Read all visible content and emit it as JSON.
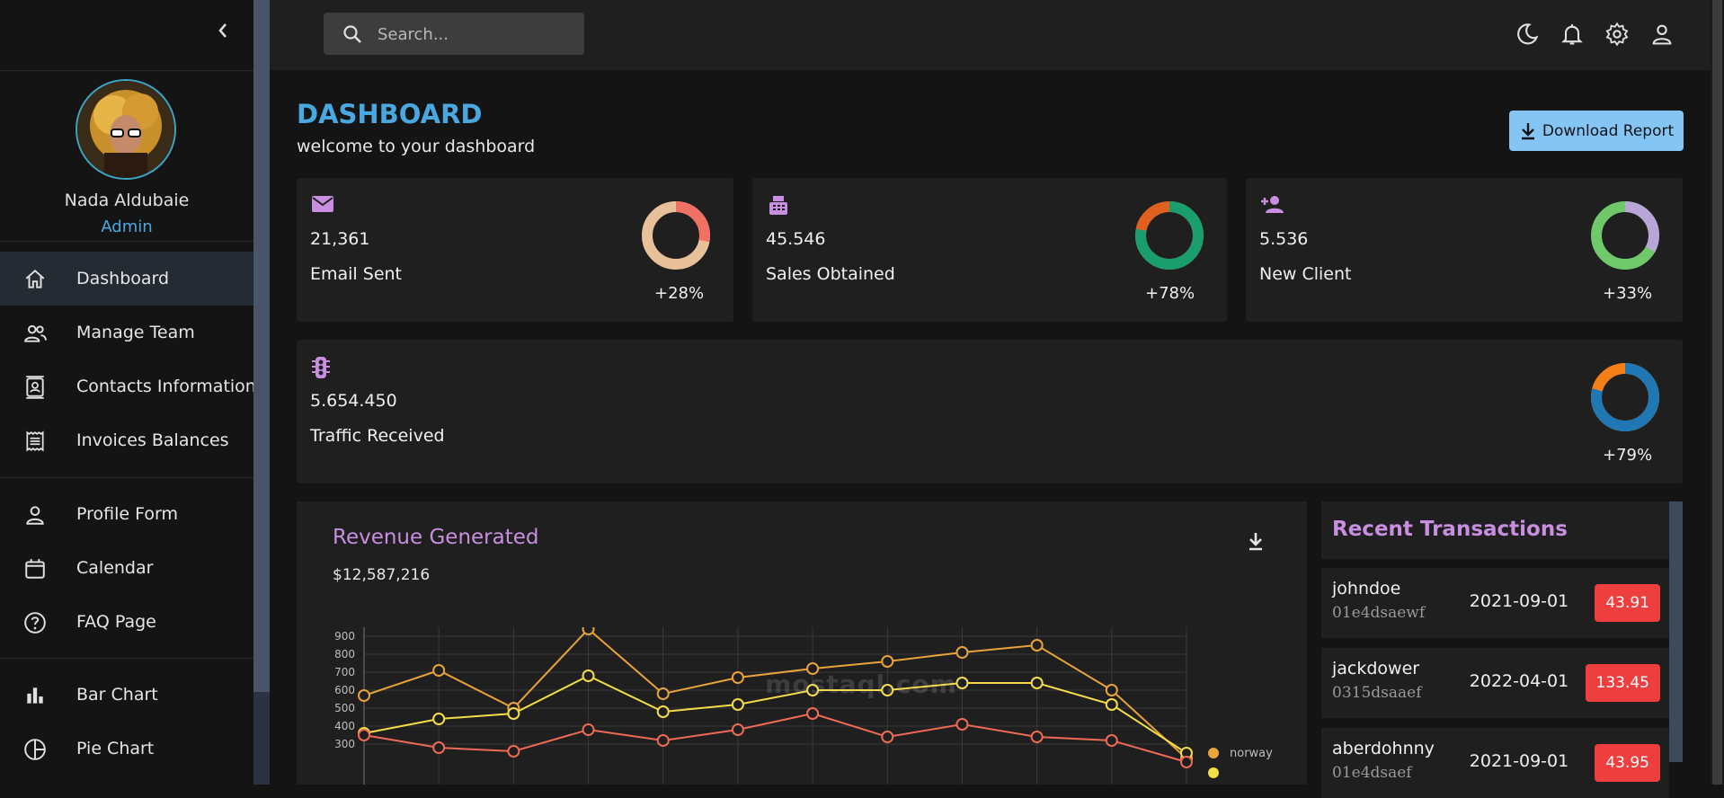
{
  "sidebar": {
    "user": {
      "name": "Nada Aldubaie",
      "role": "Admin"
    },
    "items": [
      {
        "label": "Dashboard",
        "icon": "home-icon",
        "active": true
      },
      {
        "label": "Manage Team",
        "icon": "team-icon"
      },
      {
        "label": "Contacts Information",
        "icon": "contacts-icon"
      },
      {
        "label": "Invoices Balances",
        "icon": "invoice-icon"
      },
      {
        "label": "Profile Form",
        "icon": "person-icon"
      },
      {
        "label": "Calendar",
        "icon": "calendar-icon"
      },
      {
        "label": "FAQ Page",
        "icon": "help-icon"
      },
      {
        "label": "Bar Chart",
        "icon": "bar-chart-icon"
      },
      {
        "label": "Pie Chart",
        "icon": "pie-chart-icon"
      }
    ]
  },
  "topbar": {
    "search_placeholder": "Search...",
    "icons": [
      "dark-mode-icon",
      "notifications-icon",
      "settings-icon",
      "profile-icon"
    ]
  },
  "header": {
    "title": "DASHBOARD",
    "subtitle": "welcome to your dashboard",
    "download_label": "Download Report"
  },
  "stats": [
    {
      "value": "21,361",
      "label": "Email Sent",
      "pct": "+28%",
      "progress": 0.28,
      "icon": "email-icon"
    },
    {
      "value": "45.546",
      "label": "Sales Obtained",
      "pct": "+78%",
      "progress": 0.78,
      "icon": "pos-icon"
    },
    {
      "value": "5.536",
      "label": "New Client",
      "pct": "+33%",
      "progress": 0.33,
      "icon": "person-add-icon"
    },
    {
      "value": "5.654.450",
      "label": "Traffic Received",
      "pct": "+79%",
      "progress": 0.79,
      "icon": "traffic-icon"
    }
  ],
  "revenue": {
    "title": "Revenue Generated",
    "amount": "$12,587,216"
  },
  "transactions": {
    "title": "Recent Transactions",
    "rows": [
      {
        "user": "johndoe",
        "txId": "01e4dsaewf",
        "date": "2021-09-01",
        "cost": "43.91"
      },
      {
        "user": "jackdower",
        "txId": "0315dsaaef",
        "date": "2022-04-01",
        "cost": "133.45"
      },
      {
        "user": "aberdohnny",
        "txId": "01e4dsaef",
        "date": "2021-09-01",
        "cost": "43.95"
      }
    ]
  },
  "watermark": "mostaql.com",
  "colors": {
    "accent": "#4aa8e0",
    "purple": "#c88ee0",
    "danger": "#ef3e3e",
    "button": "#84c5f4"
  },
  "chart_data": {
    "type": "line",
    "categories": [
      "",
      "",
      "",
      "",
      "",
      "",
      "",
      "",
      "",
      "",
      "",
      ""
    ],
    "ylim": [
      300,
      900
    ],
    "yticks": [
      900,
      800,
      700,
      600,
      500,
      400,
      300
    ],
    "grid": true,
    "legend": "right",
    "series": [
      {
        "name": "norway",
        "color": "#e8a33a",
        "values": [
          570,
          710,
          500,
          940,
          580,
          670,
          720,
          760,
          810,
          850,
          600,
          220
        ]
      },
      {
        "name": "",
        "color": "#f5dd4a",
        "values": [
          360,
          440,
          470,
          680,
          480,
          520,
          600,
          600,
          640,
          640,
          520,
          250
        ]
      },
      {
        "name": "",
        "color": "#ee6a55",
        "values": [
          350,
          280,
          260,
          380,
          320,
          380,
          470,
          340,
          410,
          340,
          320,
          200
        ]
      }
    ]
  }
}
